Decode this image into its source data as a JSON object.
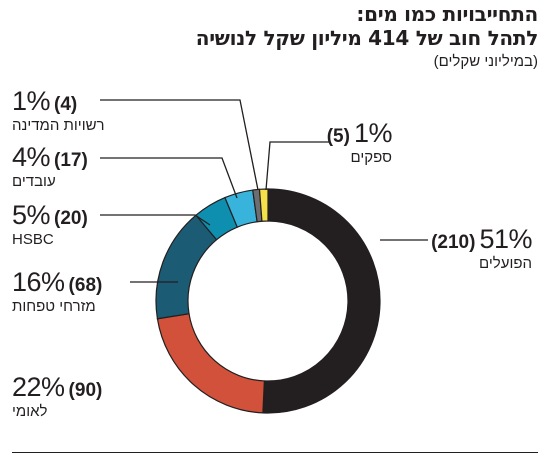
{
  "title_line1": "התחייבויות כמו מים:",
  "title_line2": "לתהל חוב של 414 מיליון שקל לנושיה",
  "unit_note": "(במיליוני שקלים)",
  "chart_data": {
    "type": "pie",
    "donut": true,
    "total": 414,
    "slices": [
      {
        "name": "הפועלים",
        "value": 210,
        "value_label": "(210)",
        "pct_label": "51%",
        "color": "#231f20"
      },
      {
        "name": "לאומי",
        "value": 90,
        "value_label": "(90)",
        "pct_label": "22%",
        "color": "#d1513a"
      },
      {
        "name": "מזרחי טפחות",
        "value": 68,
        "value_label": "(68)",
        "pct_label": "16%",
        "color": "#1c5b74"
      },
      {
        "name": "HSBC",
        "value": 20,
        "value_label": "(20)",
        "pct_label": "5%",
        "color": "#0e8fb0"
      },
      {
        "name": "עובדים",
        "value": 17,
        "value_label": "(17)",
        "pct_label": "4%",
        "color": "#38b3dc"
      },
      {
        "name": "רשויות המדינה",
        "value": 4,
        "value_label": "(4)",
        "pct_label": "1%",
        "color": "#6d6e71"
      },
      {
        "name": "ספקים",
        "value": 5,
        "value_label": "(5)",
        "pct_label": "1%",
        "color": "#f4e04a"
      }
    ]
  }
}
